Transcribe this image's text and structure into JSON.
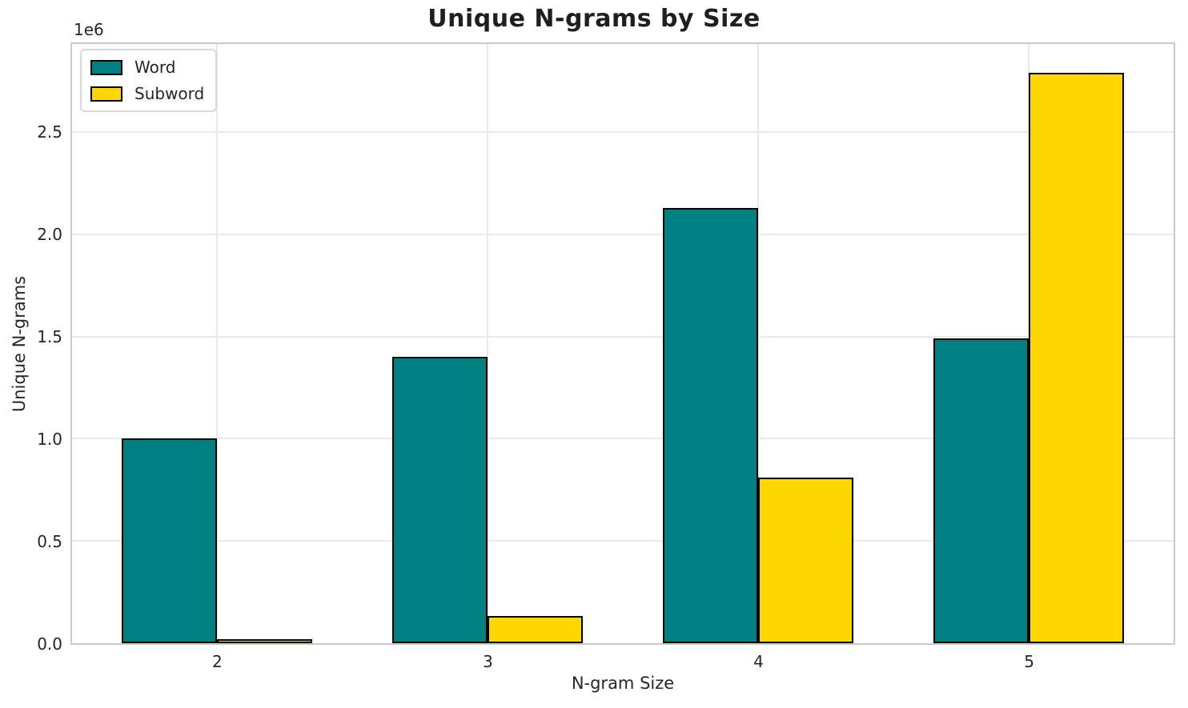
{
  "chart_data": {
    "type": "bar",
    "title": "Unique N-grams by Size",
    "xlabel": "N-gram Size",
    "ylabel": "Unique N-grams",
    "y_offset_label": "1e6",
    "categories": [
      "2",
      "3",
      "4",
      "5"
    ],
    "series": [
      {
        "name": "Word",
        "color": "#008080",
        "values": [
          1000000,
          1400000,
          2130000,
          1490000
        ]
      },
      {
        "name": "Subword",
        "color": "#FFD700",
        "values": [
          20000,
          135000,
          810000,
          2790000
        ]
      }
    ],
    "bar_edge_color": "#000000",
    "ylim": [
      0,
      2930000
    ],
    "yticks": {
      "values": [
        0,
        500000,
        1000000,
        1500000,
        2000000,
        2500000
      ],
      "labels": [
        "0.0",
        "0.5",
        "1.0",
        "1.5",
        "2.0",
        "2.5"
      ]
    },
    "grid": true,
    "grid_color": "#e9e9e9",
    "legend_position": "upper left",
    "background_color": "#ffffff",
    "text_color": "#262626"
  }
}
